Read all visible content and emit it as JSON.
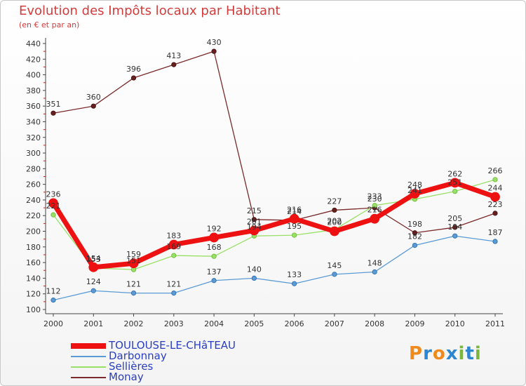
{
  "header": {
    "title": "Evolution des Impôts locaux par Habitant",
    "subtitle": "(en € et par an)"
  },
  "logo": {
    "text": "Proxiti",
    "colors": [
      "#f08a1c",
      "#2e86d1",
      "#f08a1c",
      "#2e86d1",
      "#7ab83b",
      "#2e86d1",
      "#7ab83b"
    ]
  },
  "chart_data": {
    "type": "line",
    "title": "Evolution des Impôts locaux par Habitant",
    "subtitle": "(en € et par an)",
    "xlabel": "",
    "ylabel": "",
    "categories": [
      "2000",
      "2001",
      "2002",
      "2003",
      "2004",
      "2005",
      "2006",
      "2007",
      "2008",
      "2009",
      "2010",
      "2011"
    ],
    "ylim": [
      100,
      440
    ],
    "yticks": [
      100,
      120,
      140,
      160,
      180,
      200,
      220,
      240,
      260,
      280,
      300,
      320,
      340,
      360,
      380,
      400,
      420,
      440
    ],
    "grid": false,
    "legend": "bottom-left",
    "series": [
      {
        "name": "TOULOUSE-LE-CHâTEAU",
        "color": "#ee1111",
        "values": [
          236,
          154,
          159,
          183,
          192,
          201,
          216,
          200,
          216,
          248,
          262,
          244
        ]
      },
      {
        "name": "Darbonnay",
        "color": "#5b9bd5",
        "values": [
          112,
          124,
          121,
          121,
          137,
          140,
          133,
          145,
          148,
          182,
          194,
          187
        ]
      },
      {
        "name": "Sellières",
        "color": "#99e066",
        "values": [
          221,
          153,
          151,
          169,
          168,
          194,
          195,
          202,
          233,
          241,
          251,
          266
        ]
      },
      {
        "name": "Monay",
        "color": "#7a2a2a",
        "values": [
          351,
          360,
          396,
          413,
          430,
          215,
          214,
          227,
          230,
          198,
          205,
          223
        ]
      }
    ]
  }
}
